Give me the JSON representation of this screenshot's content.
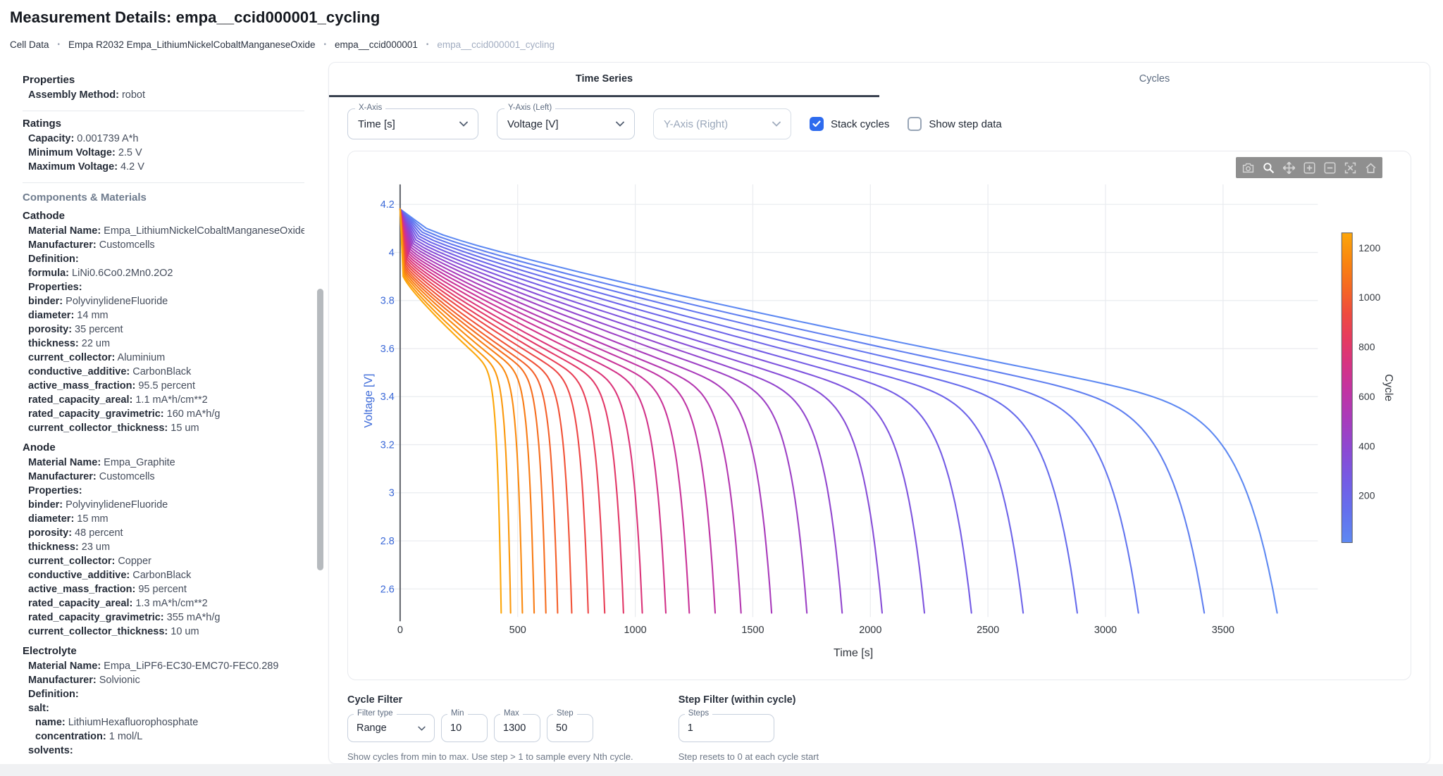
{
  "header": {
    "title": "Measurement Details: empa__ccid000001_cycling"
  },
  "breadcrumb": {
    "separator": "•",
    "items": [
      "Cell Data",
      "Empa R2032 Empa_LithiumNickelCobaltManganeseOxide",
      "empa__ccid000001",
      "empa__ccid000001_cycling"
    ]
  },
  "sidebar": {
    "groups": [
      {
        "heading": "Properties",
        "divider": true,
        "rows": [
          {
            "label": "Assembly Method:",
            "value": "robot"
          }
        ]
      },
      {
        "heading": "Ratings",
        "divider": true,
        "rows": [
          {
            "label": "Capacity:",
            "value": "0.001739 A*h"
          },
          {
            "label": "Minimum Voltage:",
            "value": "2.5 V"
          },
          {
            "label": "Maximum Voltage:",
            "value": "4.2 V"
          }
        ]
      },
      {
        "heading": "Components & Materials",
        "muted": true,
        "rows": []
      },
      {
        "heading": "Cathode",
        "rows": [
          {
            "label": "Material Name:",
            "value": "Empa_LithiumNickelCobaltManganeseOxide"
          },
          {
            "label": "Manufacturer:",
            "value": "Customcells"
          },
          {
            "label": "Definition:",
            "value": ""
          },
          {
            "label": "formula:",
            "value": "LiNi0.6Co0.2Mn0.2O2"
          },
          {
            "label": "Properties:",
            "value": ""
          },
          {
            "label": "binder:",
            "value": "PolyvinylideneFluoride"
          },
          {
            "label": "diameter:",
            "value": "14 mm"
          },
          {
            "label": "porosity:",
            "value": "35 percent"
          },
          {
            "label": "thickness:",
            "value": "22 um"
          },
          {
            "label": "current_collector:",
            "value": "Aluminium"
          },
          {
            "label": "conductive_additive:",
            "value": "CarbonBlack"
          },
          {
            "label": "active_mass_fraction:",
            "value": "95.5 percent"
          },
          {
            "label": "rated_capacity_areal:",
            "value": "1.1 mA*h/cm**2"
          },
          {
            "label": "rated_capacity_gravimetric:",
            "value": "160 mA*h/g"
          },
          {
            "label": "current_collector_thickness:",
            "value": "15 um"
          }
        ]
      },
      {
        "heading": "Anode",
        "rows": [
          {
            "label": "Material Name:",
            "value": "Empa_Graphite"
          },
          {
            "label": "Manufacturer:",
            "value": "Customcells"
          },
          {
            "label": "Properties:",
            "value": ""
          },
          {
            "label": "binder:",
            "value": "PolyvinylideneFluoride"
          },
          {
            "label": "diameter:",
            "value": "15 mm"
          },
          {
            "label": "porosity:",
            "value": "48 percent"
          },
          {
            "label": "thickness:",
            "value": "23 um"
          },
          {
            "label": "current_collector:",
            "value": "Copper"
          },
          {
            "label": "conductive_additive:",
            "value": "CarbonBlack"
          },
          {
            "label": "active_mass_fraction:",
            "value": "95 percent"
          },
          {
            "label": "rated_capacity_areal:",
            "value": "1.3 mA*h/cm**2"
          },
          {
            "label": "rated_capacity_gravimetric:",
            "value": "355 mA*h/g"
          },
          {
            "label": "current_collector_thickness:",
            "value": "10 um"
          }
        ]
      },
      {
        "heading": "Electrolyte",
        "rows": [
          {
            "label": "Material Name:",
            "value": "Empa_LiPF6-EC30-EMC70-FEC0.289"
          },
          {
            "label": "Manufacturer:",
            "value": "Solvionic"
          },
          {
            "label": "Definition:",
            "value": ""
          },
          {
            "label": "salt:",
            "value": ""
          },
          {
            "label": "name:",
            "value": "LithiumHexafluorophosphate",
            "indent": 1
          },
          {
            "label": "concentration:",
            "value": "1 mol/L",
            "indent": 1
          },
          {
            "label": "solvents:",
            "value": ""
          }
        ]
      }
    ]
  },
  "main": {
    "tabs": [
      {
        "label": "Time Series",
        "active": true
      },
      {
        "label": "Cycles",
        "active": false
      }
    ],
    "controls": {
      "x_axis": {
        "label": "X-Axis",
        "value": "Time [s]"
      },
      "y_left": {
        "label": "Y-Axis (Left)",
        "value": "Voltage [V]"
      },
      "y_right": {
        "label": "Y-Axis (Right)",
        "placeholder": "Y-Axis (Right)"
      },
      "stack_cycles": {
        "label": "Stack cycles",
        "checked": true
      },
      "show_step_data": {
        "label": "Show step data",
        "checked": false
      }
    },
    "modebar_icons": [
      "camera-icon",
      "zoom-icon",
      "pan-icon",
      "zoom-in-icon",
      "zoom-out-icon",
      "autoscale-icon",
      "home-icon"
    ]
  },
  "cycle_filter": {
    "heading": "Cycle Filter",
    "filter_type": {
      "label": "Filter type",
      "value": "Range"
    },
    "min": {
      "label": "Min",
      "value": "10"
    },
    "max": {
      "label": "Max",
      "value": "1300"
    },
    "step": {
      "label": "Step",
      "value": "50"
    },
    "help": "Show cycles from min to max. Use step > 1 to sample every Nth cycle."
  },
  "step_filter": {
    "heading": "Step Filter (within cycle)",
    "steps": {
      "label": "Steps",
      "value": "1"
    },
    "help": "Step resets to 0 at each cycle start"
  },
  "chart_data": {
    "type": "line",
    "title": "",
    "xlabel": "Time [s]",
    "ylabel": "Voltage [V]",
    "x_ticks": [
      0,
      500,
      1000,
      1500,
      2000,
      2500,
      3000,
      3500
    ],
    "y_ticks": [
      4.2,
      4,
      3.8,
      3.6,
      3.4,
      3.2,
      3,
      2.8,
      2.6
    ],
    "xlim": [
      -48,
      3903
    ],
    "ylim": [
      2.483,
      4.283
    ],
    "grid": true,
    "axis_colors": {
      "y_axis": "#3a68d8",
      "x_axis": "#30353c",
      "gridline": "#e9ebef",
      "zeroline": "#5f636b"
    },
    "colorbar": {
      "title": "Cycle",
      "ticks": [
        200,
        400,
        600,
        800,
        1000,
        1200
      ],
      "cmin": 10,
      "cmax": 1260,
      "stops": [
        [
          0.0,
          "#5E89F2"
        ],
        [
          0.1,
          "#6470EE"
        ],
        [
          0.2,
          "#745CE5"
        ],
        [
          0.3,
          "#8C49D3"
        ],
        [
          0.4,
          "#A93BBB"
        ],
        [
          0.5,
          "#C433A0"
        ],
        [
          0.58,
          "#D73381"
        ],
        [
          0.66,
          "#E63B5F"
        ],
        [
          0.74,
          "#EF4B3E"
        ],
        [
          0.82,
          "#F56724"
        ],
        [
          0.9,
          "#F98310"
        ],
        [
          1.0,
          "#FCA60A"
        ]
      ]
    },
    "discharge_model": {
      "v_start": 4.18,
      "v_plateau_first": 4.1,
      "v_plateau_last": 3.9,
      "v_knee_first": 3.32,
      "v_knee_last": 3.48,
      "v_cutoff": 2.5
    },
    "series": [
      {
        "cycle": 10,
        "end_time_s": 3730
      },
      {
        "cycle": 60,
        "end_time_s": 3420
      },
      {
        "cycle": 110,
        "end_time_s": 3140
      },
      {
        "cycle": 160,
        "end_time_s": 2880
      },
      {
        "cycle": 210,
        "end_time_s": 2650
      },
      {
        "cycle": 260,
        "end_time_s": 2430
      },
      {
        "cycle": 310,
        "end_time_s": 2230
      },
      {
        "cycle": 360,
        "end_time_s": 2050
      },
      {
        "cycle": 410,
        "end_time_s": 1880
      },
      {
        "cycle": 460,
        "end_time_s": 1730
      },
      {
        "cycle": 510,
        "end_time_s": 1580
      },
      {
        "cycle": 560,
        "end_time_s": 1450
      },
      {
        "cycle": 610,
        "end_time_s": 1340
      },
      {
        "cycle": 660,
        "end_time_s": 1230
      },
      {
        "cycle": 710,
        "end_time_s": 1130
      },
      {
        "cycle": 760,
        "end_time_s": 1030
      },
      {
        "cycle": 810,
        "end_time_s": 950
      },
      {
        "cycle": 860,
        "end_time_s": 870
      },
      {
        "cycle": 910,
        "end_time_s": 800
      },
      {
        "cycle": 960,
        "end_time_s": 730
      },
      {
        "cycle": 1010,
        "end_time_s": 670
      },
      {
        "cycle": 1060,
        "end_time_s": 620
      },
      {
        "cycle": 1110,
        "end_time_s": 570
      },
      {
        "cycle": 1160,
        "end_time_s": 520
      },
      {
        "cycle": 1210,
        "end_time_s": 470
      },
      {
        "cycle": 1260,
        "end_time_s": 430
      }
    ]
  }
}
